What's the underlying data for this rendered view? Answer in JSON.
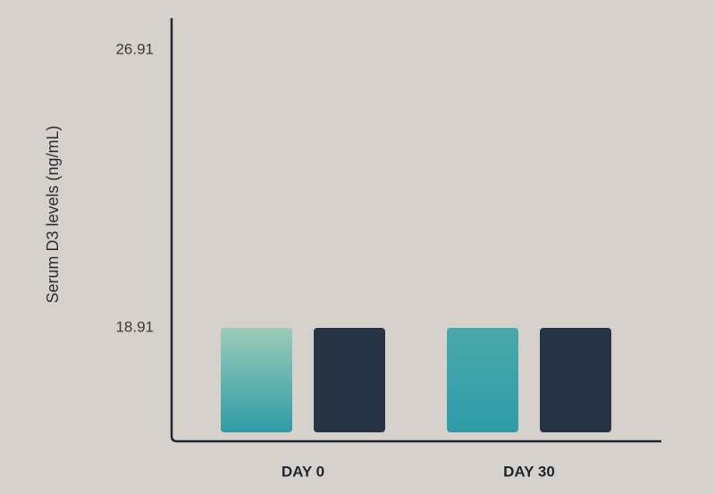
{
  "chart_data": {
    "type": "bar",
    "y_label": "Serum D3 levels (ng/mL)",
    "categories": [
      "DAY 0",
      "DAY 30"
    ],
    "series": [
      {
        "colors": [
          [
            "#9ccbb8",
            "#2e9ca6"
          ],
          [
            "#4aa8aa",
            "#2e9ca8"
          ]
        ],
        "values": [
          18.91,
          18.91
        ]
      },
      {
        "color": "#263445",
        "values": [
          18.91,
          18.91
        ]
      }
    ],
    "ylim": [
      15.9,
      27.7
    ],
    "yticks": [
      18.91,
      26.91
    ],
    "grid": false,
    "background": "#d6d1ca"
  }
}
